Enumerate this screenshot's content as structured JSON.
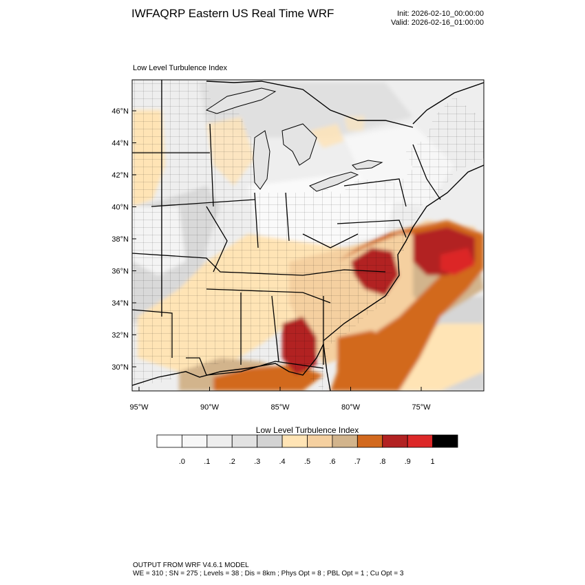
{
  "header": {
    "title": "IWFAQRP Eastern US Real Time WRF",
    "init_line": "Init: 2026-02-10_00:00:00",
    "valid_line": "Valid: 2026-02-16_01:00:00"
  },
  "panel": {
    "label": "Low Level Turbulence Index"
  },
  "map": {
    "lon_range": [
      -95.5,
      -70.5
    ],
    "lat_range": [
      28.4,
      47.8
    ],
    "lat_ticks": [
      "46°N",
      "44°N",
      "42°N",
      "40°N",
      "38°N",
      "36°N",
      "34°N",
      "32°N",
      "30°N"
    ],
    "lon_ticks": [
      "95°W",
      "90°W",
      "85°W",
      "80°W",
      "75°W"
    ]
  },
  "colorbar": {
    "title": "Low Level Turbulence Index",
    "colors": [
      "#ffffff",
      "#f7f7f7",
      "#eeeeee",
      "#e2e2e2",
      "#d3d3d3",
      "#ffe4b5",
      "#f5d0a0",
      "#d2b48c",
      "#d2691e",
      "#b22222",
      "#dc2828",
      "#000000"
    ],
    "labels": [
      ".0",
      ".1",
      ".2",
      ".3",
      ".4",
      ".5",
      ".6",
      ".7",
      ".8",
      ".9",
      "1"
    ]
  },
  "footer": {
    "line1": "OUTPUT FROM WRF V4.6.1 MODEL",
    "line2": "WE = 310 ; SN = 275 ; Levels = 38 ; Dis = 8km ; Phys Opt = 8 ; PBL Opt = 1 ; Cu Opt = 3"
  }
}
